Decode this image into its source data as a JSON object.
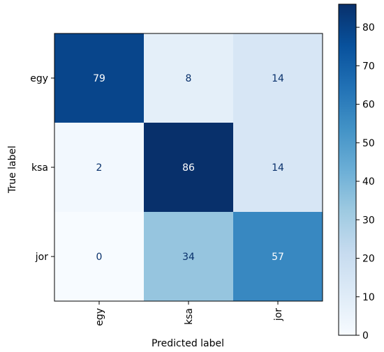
{
  "chart_data": {
    "type": "heatmap",
    "x_categories": [
      "egy",
      "ksa",
      "jor"
    ],
    "y_categories": [
      "egy",
      "ksa",
      "jor"
    ],
    "values": [
      [
        79,
        8,
        14
      ],
      [
        2,
        86,
        14
      ],
      [
        0,
        34,
        57
      ]
    ],
    "xlabel": "Predicted label",
    "ylabel": "True label",
    "colormap": "Blues",
    "vmin": 0,
    "vmax": 86,
    "colorbar_ticks": [
      0,
      10,
      20,
      30,
      40,
      50,
      60,
      70,
      80
    ],
    "colorbar_position": "right",
    "x_tick_rotation": "vertical"
  }
}
